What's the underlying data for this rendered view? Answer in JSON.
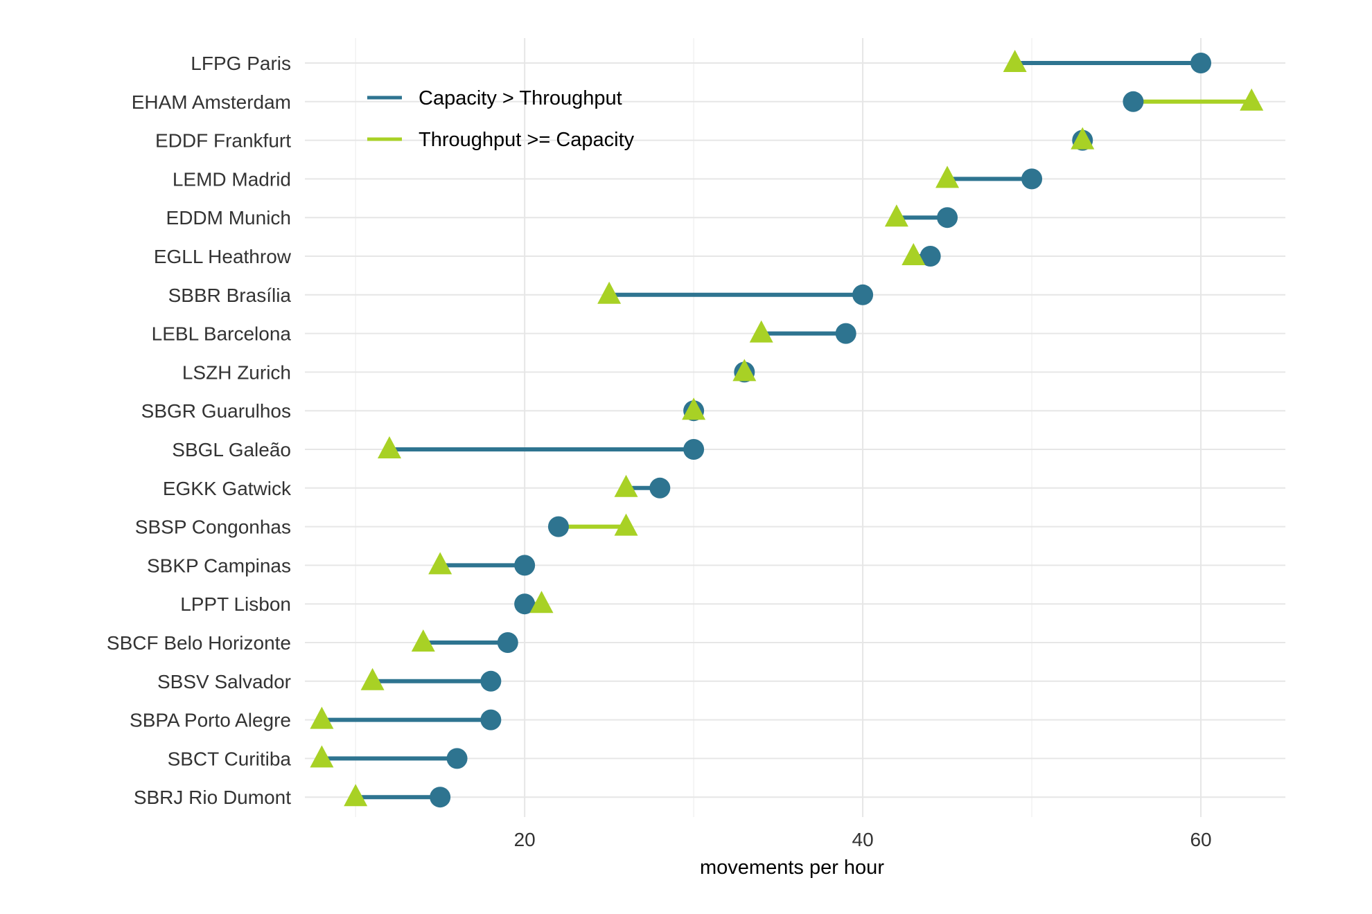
{
  "chart_data": {
    "type": "dumbbell",
    "title": "",
    "xlabel": "movements per hour",
    "ylabel": "",
    "xlim": [
      7,
      65
    ],
    "xticks": [
      20,
      40,
      60
    ],
    "grid": true,
    "legend_position": "top-left",
    "legend": [
      {
        "key": "capacity_gt",
        "label": "Capacity > Throughput",
        "color": "#2e7490"
      },
      {
        "key": "throughput_ge",
        "label": "Throughput >= Capacity",
        "color": "#a8d125"
      }
    ],
    "series_markers": {
      "capacity": "circle",
      "throughput": "triangle"
    },
    "airports": [
      {
        "label": "LFPG Paris",
        "capacity": 60,
        "throughput": 49
      },
      {
        "label": "EHAM Amsterdam",
        "capacity": 56,
        "throughput": 63
      },
      {
        "label": "EDDF Frankfurt",
        "capacity": 53,
        "throughput": 53
      },
      {
        "label": "LEMD Madrid",
        "capacity": 50,
        "throughput": 45
      },
      {
        "label": "EDDM Munich",
        "capacity": 45,
        "throughput": 42
      },
      {
        "label": "EGLL Heathrow",
        "capacity": 44,
        "throughput": 43
      },
      {
        "label": "SBBR Brasília",
        "capacity": 40,
        "throughput": 25
      },
      {
        "label": "LEBL Barcelona",
        "capacity": 39,
        "throughput": 34
      },
      {
        "label": "LSZH Zurich",
        "capacity": 33,
        "throughput": 33
      },
      {
        "label": "SBGR Guarulhos",
        "capacity": 30,
        "throughput": 30
      },
      {
        "label": "SBGL Galeão",
        "capacity": 30,
        "throughput": 12
      },
      {
        "label": "EGKK Gatwick",
        "capacity": 28,
        "throughput": 26
      },
      {
        "label": "SBSP Congonhas",
        "capacity": 22,
        "throughput": 26
      },
      {
        "label": "SBKP Campinas",
        "capacity": 20,
        "throughput": 15
      },
      {
        "label": "LPPT Lisbon",
        "capacity": 20,
        "throughput": 21
      },
      {
        "label": "SBCF Belo Horizonte",
        "capacity": 19,
        "throughput": 14
      },
      {
        "label": "SBSV Salvador",
        "capacity": 18,
        "throughput": 11
      },
      {
        "label": "SBPA Porto Alegre",
        "capacity": 18,
        "throughput": 8
      },
      {
        "label": "SBCT Curitiba",
        "capacity": 16,
        "throughput": 8
      },
      {
        "label": "SBRJ Rio Dumont",
        "capacity": 15,
        "throughput": 10
      }
    ]
  }
}
